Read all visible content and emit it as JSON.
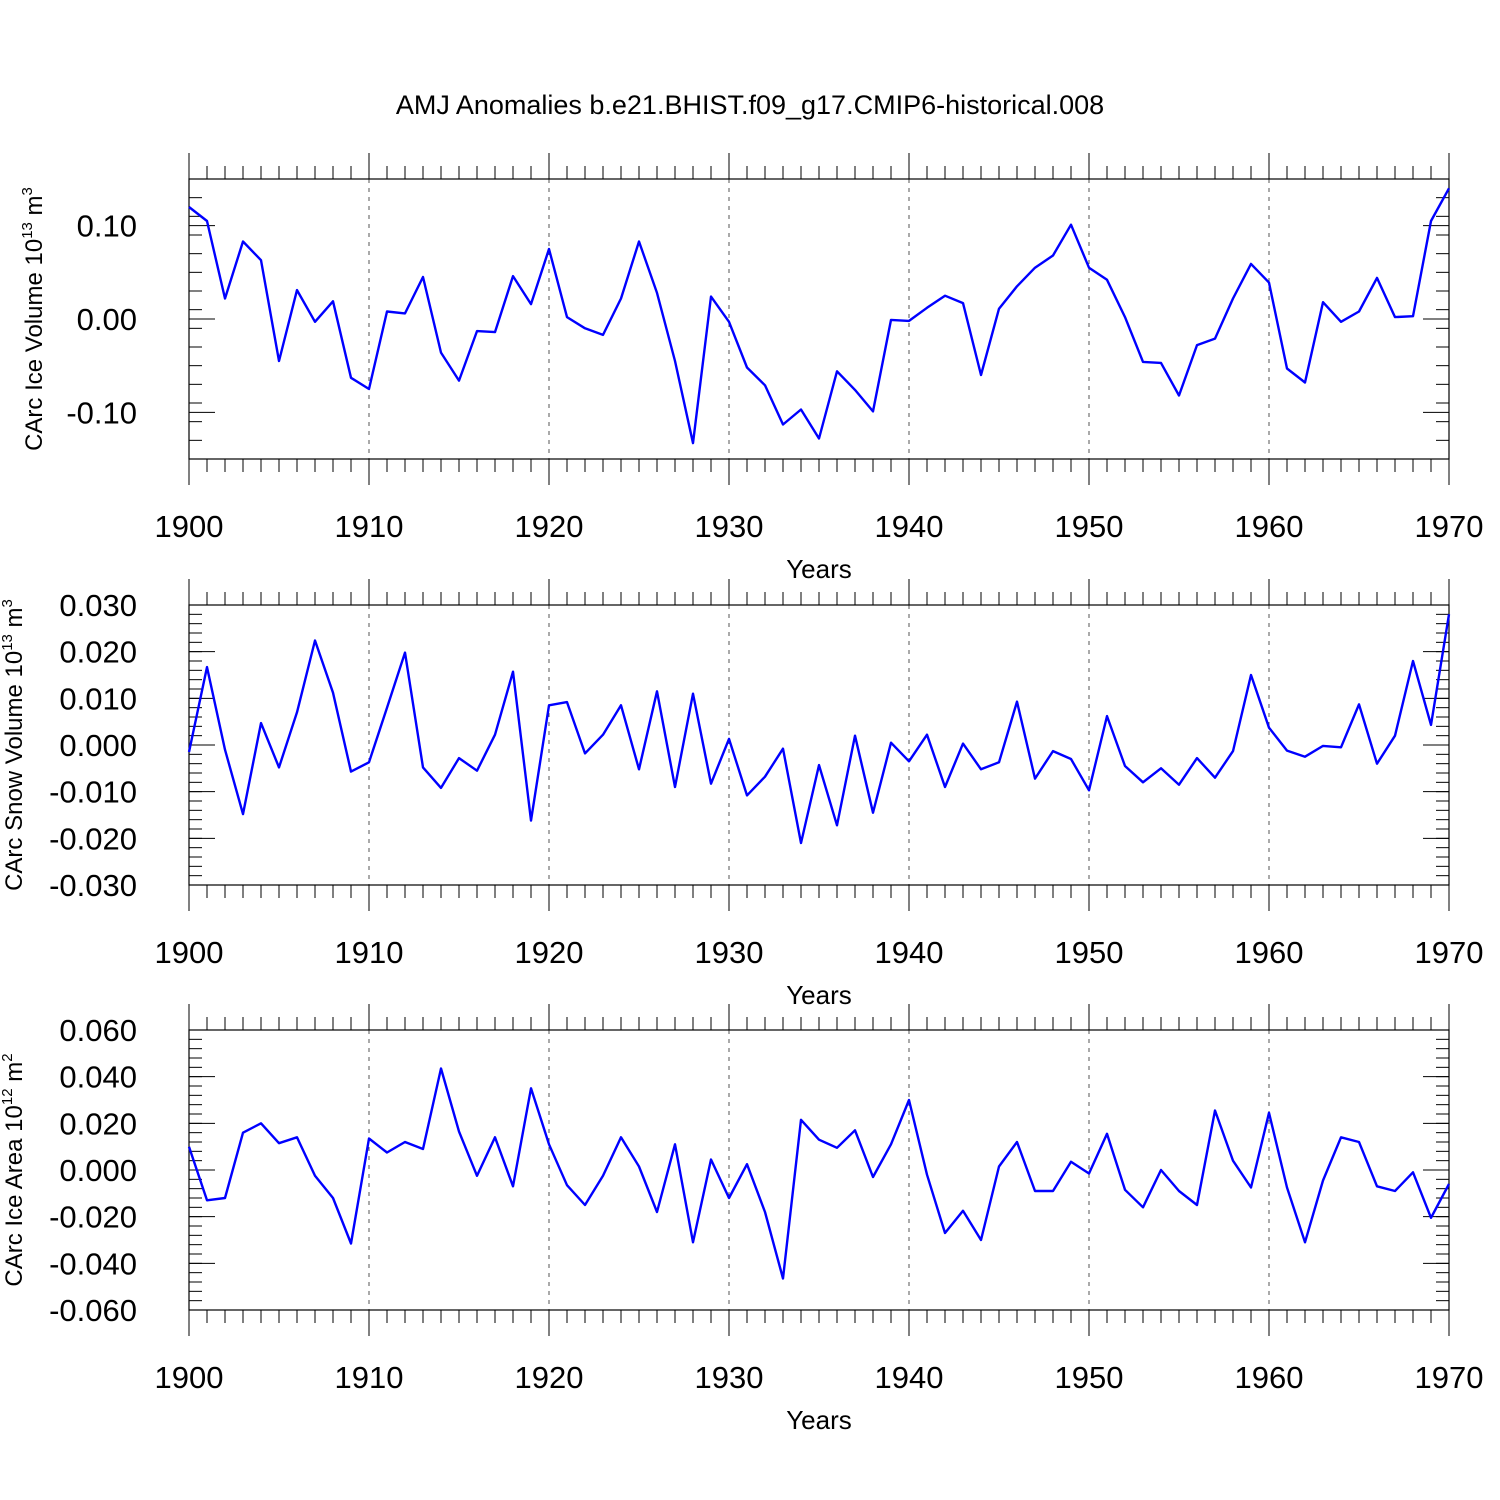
{
  "title": "AMJ Anomalies b.e21.BHIST.f09_g17.CMIP6-historical.008",
  "colors": {
    "series": "#0000ff",
    "axis": "#000000",
    "grid": "#555555"
  },
  "chart_data": [
    {
      "type": "line",
      "ylabel_main": "CArc Ice Volume 10",
      "ylabel_exp": "13",
      "ylabel_unit": " m",
      "ylabel_unit_exp": "3",
      "xlabel": "Years",
      "xlim": [
        1900,
        1970
      ],
      "ylim": [
        -0.15,
        0.15
      ],
      "xticks": [
        1900,
        1910,
        1920,
        1930,
        1940,
        1950,
        1960,
        1970
      ],
      "xtick_labels": [
        "1900",
        "1910",
        "1920",
        "1930",
        "1940",
        "1950",
        "1960",
        "1970"
      ],
      "yticks": [
        0.1,
        0.0,
        -0.1
      ],
      "ytick_labels": [
        "0.10",
        "0.00",
        "-0.10"
      ],
      "yminor_step": 0.02,
      "x": [
        1900,
        1901,
        1902,
        1903,
        1904,
        1905,
        1906,
        1907,
        1908,
        1909,
        1910,
        1911,
        1912,
        1913,
        1914,
        1915,
        1916,
        1917,
        1918,
        1919,
        1920,
        1921,
        1922,
        1923,
        1924,
        1925,
        1926,
        1927,
        1928,
        1929,
        1930,
        1931,
        1932,
        1933,
        1934,
        1935,
        1936,
        1937,
        1938,
        1939,
        1940,
        1941,
        1942,
        1943,
        1944,
        1945,
        1946,
        1947,
        1948,
        1949,
        1950,
        1951,
        1952,
        1953,
        1954,
        1955,
        1956,
        1957,
        1958,
        1959,
        1960,
        1961,
        1962,
        1963,
        1964,
        1965,
        1966,
        1967,
        1968,
        1969,
        1970
      ],
      "values": [
        0.12,
        0.105,
        0.022,
        0.083,
        0.063,
        -0.045,
        0.031,
        -0.003,
        0.019,
        -0.063,
        -0.075,
        0.008,
        0.006,
        0.045,
        -0.036,
        -0.066,
        -0.013,
        -0.014,
        0.046,
        0.016,
        0.075,
        0.002,
        -0.01,
        -0.017,
        0.022,
        0.083,
        0.028,
        -0.045,
        -0.133,
        0.024,
        -0.003,
        -0.052,
        -0.071,
        -0.113,
        -0.097,
        -0.128,
        -0.056,
        -0.076,
        -0.099,
        -0.001,
        -0.002,
        0.012,
        0.025,
        0.017,
        -0.06,
        0.011,
        0.035,
        0.055,
        0.068,
        0.101,
        0.055,
        0.042,
        0.002,
        -0.046,
        -0.047,
        -0.082,
        -0.028,
        -0.021,
        0.022,
        0.059,
        0.039,
        -0.053,
        -0.068,
        0.018,
        -0.003,
        0.008,
        0.044,
        0.002,
        0.003,
        0.105,
        0.14
      ]
    },
    {
      "type": "line",
      "ylabel_main": "CArc Snow Volume 10",
      "ylabel_exp": "13",
      "ylabel_unit": " m",
      "ylabel_unit_exp": "3",
      "xlabel": "Years",
      "xlim": [
        1900,
        1970
      ],
      "ylim": [
        -0.03,
        0.03
      ],
      "xticks": [
        1900,
        1910,
        1920,
        1930,
        1940,
        1950,
        1960,
        1970
      ],
      "xtick_labels": [
        "1900",
        "1910",
        "1920",
        "1930",
        "1940",
        "1950",
        "1960",
        "1970"
      ],
      "yticks": [
        0.03,
        0.02,
        0.01,
        0.0,
        -0.01,
        -0.02,
        -0.03
      ],
      "ytick_labels": [
        "0.030",
        "0.020",
        "0.010",
        "0.000",
        "-0.010",
        "-0.020",
        "-0.030"
      ],
      "yminor_step": 0.002,
      "x": [
        1900,
        1901,
        1902,
        1903,
        1904,
        1905,
        1906,
        1907,
        1908,
        1909,
        1910,
        1911,
        1912,
        1913,
        1914,
        1915,
        1916,
        1917,
        1918,
        1919,
        1920,
        1921,
        1922,
        1923,
        1924,
        1925,
        1926,
        1927,
        1928,
        1929,
        1930,
        1931,
        1932,
        1933,
        1934,
        1935,
        1936,
        1937,
        1938,
        1939,
        1940,
        1941,
        1942,
        1943,
        1944,
        1945,
        1946,
        1947,
        1948,
        1949,
        1950,
        1951,
        1952,
        1953,
        1954,
        1955,
        1956,
        1957,
        1958,
        1959,
        1960,
        1961,
        1962,
        1963,
        1964,
        1965,
        1966,
        1967,
        1968,
        1969,
        1970
      ],
      "values": [
        -0.0015,
        0.0167,
        -0.001,
        -0.0148,
        0.0047,
        -0.0048,
        0.007,
        0.0224,
        0.0112,
        -0.0057,
        -0.0037,
        0.008,
        0.0198,
        -0.0048,
        -0.0092,
        -0.0028,
        -0.0055,
        0.0022,
        0.0157,
        -0.0162,
        0.0085,
        0.0092,
        -0.0018,
        0.0022,
        0.0085,
        -0.0052,
        0.0115,
        -0.009,
        0.011,
        -0.0083,
        0.0013,
        -0.0108,
        -0.0068,
        -0.0008,
        -0.021,
        -0.0043,
        -0.0172,
        0.002,
        -0.0145,
        0.0005,
        -0.0035,
        0.0022,
        -0.009,
        0.0003,
        -0.0052,
        -0.0037,
        0.0093,
        -0.0072,
        -0.0013,
        -0.003,
        -0.0097,
        0.0062,
        -0.0045,
        -0.008,
        -0.005,
        -0.0085,
        -0.0028,
        -0.007,
        -0.0013,
        0.015,
        0.0037,
        -0.0012,
        -0.0025,
        -0.0002,
        -0.0005,
        0.0087,
        -0.004,
        0.002,
        0.018,
        0.0043,
        0.028
      ]
    },
    {
      "type": "line",
      "ylabel_main": "CArc Ice Area 10",
      "ylabel_exp": "12",
      "ylabel_unit": " m",
      "ylabel_unit_exp": "2",
      "xlabel": "Years",
      "xlim": [
        1900,
        1970
      ],
      "ylim": [
        -0.06,
        0.06
      ],
      "xticks": [
        1900,
        1910,
        1920,
        1930,
        1940,
        1950,
        1960,
        1970
      ],
      "xtick_labels": [
        "1900",
        "1910",
        "1920",
        "1930",
        "1940",
        "1950",
        "1960",
        "1970"
      ],
      "yticks": [
        0.06,
        0.04,
        0.02,
        0.0,
        -0.02,
        -0.04,
        -0.06
      ],
      "ytick_labels": [
        "0.060",
        "0.040",
        "0.020",
        "0.000",
        "-0.020",
        "-0.040",
        "-0.060"
      ],
      "yminor_step": 0.004,
      "x": [
        1900,
        1901,
        1902,
        1903,
        1904,
        1905,
        1906,
        1907,
        1908,
        1909,
        1910,
        1911,
        1912,
        1913,
        1914,
        1915,
        1916,
        1917,
        1918,
        1919,
        1920,
        1921,
        1922,
        1923,
        1924,
        1925,
        1926,
        1927,
        1928,
        1929,
        1930,
        1931,
        1932,
        1933,
        1934,
        1935,
        1936,
        1937,
        1938,
        1939,
        1940,
        1941,
        1942,
        1943,
        1944,
        1945,
        1946,
        1947,
        1948,
        1949,
        1950,
        1951,
        1952,
        1953,
        1954,
        1955,
        1956,
        1957,
        1958,
        1959,
        1960,
        1961,
        1962,
        1963,
        1964,
        1965,
        1966,
        1967,
        1968,
        1969,
        1970
      ],
      "values": [
        0.01,
        -0.013,
        -0.012,
        0.016,
        0.02,
        0.0115,
        0.014,
        -0.0025,
        -0.012,
        -0.0315,
        0.0135,
        0.0075,
        0.012,
        0.009,
        0.0435,
        0.0165,
        -0.0025,
        0.014,
        -0.007,
        0.035,
        0.011,
        -0.0065,
        -0.015,
        -0.0025,
        0.014,
        0.0015,
        -0.018,
        0.011,
        -0.031,
        0.0045,
        -0.012,
        0.0025,
        -0.018,
        -0.0465,
        0.0215,
        0.013,
        0.0095,
        0.017,
        -0.003,
        0.011,
        0.03,
        -0.002,
        -0.027,
        -0.0175,
        -0.03,
        0.0015,
        0.012,
        -0.009,
        -0.009,
        0.0035,
        -0.0015,
        0.0155,
        -0.0085,
        -0.016,
        0.0,
        -0.009,
        -0.015,
        0.0255,
        0.004,
        -0.0075,
        0.0245,
        -0.0075,
        -0.031,
        -0.0045,
        0.014,
        0.012,
        -0.007,
        -0.009,
        -0.001,
        -0.0205,
        -0.006
      ]
    }
  ]
}
